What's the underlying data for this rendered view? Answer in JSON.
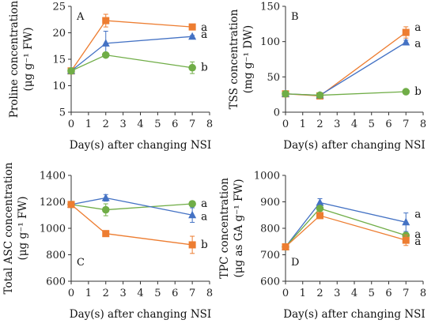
{
  "colors": {
    "orange": "#ED7D31",
    "blue": "#4472C4",
    "green": "#70AD47"
  },
  "chart_data": [
    {
      "type": "line",
      "panel": "A",
      "xlabel": "Day(s) after changing NSI",
      "ylabel": "Proline concentration",
      "ylabel2": "(μg g⁻¹ FW)",
      "xlim": [
        0,
        8
      ],
      "ylim": [
        5,
        25
      ],
      "xticks": [
        0,
        1,
        2,
        3,
        4,
        5,
        6,
        7,
        8
      ],
      "yticks": [
        5,
        10,
        15,
        20,
        25
      ],
      "x": [
        0,
        2,
        7
      ],
      "series": [
        {
          "color": "orange",
          "marker": "square",
          "values": [
            12.8,
            22.3,
            21.1
          ],
          "errors": [
            0,
            1.2,
            0.3
          ],
          "sig": "a"
        },
        {
          "color": "blue",
          "marker": "triangle",
          "values": [
            12.8,
            18.0,
            19.3
          ],
          "errors": [
            0,
            2.3,
            0.2
          ],
          "sig": "a"
        },
        {
          "color": "green",
          "marker": "circle",
          "values": [
            12.8,
            15.8,
            13.4
          ],
          "errors": [
            0,
            0.4,
            1.1
          ],
          "sig": "b"
        }
      ]
    },
    {
      "type": "line",
      "panel": "B",
      "xlabel": "Day(s) after changing NSI",
      "ylabel": "TSS concentration",
      "ylabel2": "(mg g⁻¹ DW)",
      "xlim": [
        0,
        8
      ],
      "ylim": [
        0,
        150
      ],
      "xticks": [
        0,
        1,
        2,
        3,
        4,
        5,
        6,
        7,
        8
      ],
      "yticks": [
        0,
        50,
        100,
        150
      ],
      "x": [
        0,
        2,
        7
      ],
      "series": [
        {
          "color": "orange",
          "marker": "square",
          "values": [
            26,
            23,
            113
          ],
          "errors": [
            0,
            2,
            8
          ],
          "sig": "a"
        },
        {
          "color": "blue",
          "marker": "triangle",
          "values": [
            26,
            24,
            99
          ],
          "errors": [
            0,
            2,
            3
          ],
          "sig": "a"
        },
        {
          "color": "green",
          "marker": "circle",
          "values": [
            26,
            24,
            29
          ],
          "errors": [
            0,
            1,
            1
          ],
          "sig": "b"
        }
      ]
    },
    {
      "type": "line",
      "panel": "C",
      "xlabel": "Day(s) after changing NSI",
      "ylabel": "Total ASC concentration",
      "ylabel2": "(μg g⁻¹ FW)",
      "xlim": [
        0,
        8
      ],
      "ylim": [
        600,
        1400
      ],
      "xticks": [
        0,
        1,
        2,
        3,
        4,
        5,
        6,
        7,
        8
      ],
      "yticks": [
        600,
        800,
        1000,
        1200,
        1400
      ],
      "x": [
        0,
        2,
        7
      ],
      "series": [
        {
          "color": "green",
          "marker": "circle",
          "values": [
            1180,
            1140,
            1185
          ],
          "errors": [
            0,
            45,
            20
          ],
          "sig": "a"
        },
        {
          "color": "blue",
          "marker": "triangle",
          "values": [
            1180,
            1230,
            1100
          ],
          "errors": [
            0,
            25,
            55
          ],
          "sig": "a"
        },
        {
          "color": "orange",
          "marker": "square",
          "values": [
            1180,
            960,
            875
          ],
          "errors": [
            0,
            10,
            65
          ],
          "sig": "b"
        }
      ]
    },
    {
      "type": "line",
      "panel": "D",
      "xlabel": "Day(s) after changing NSI",
      "ylabel": "TPC concentration",
      "ylabel2": "(μg as GA g⁻¹ FW)",
      "xlim": [
        0,
        8
      ],
      "ylim": [
        600,
        1000
      ],
      "xticks": [
        0,
        1,
        2,
        3,
        4,
        5,
        6,
        7,
        8
      ],
      "yticks": [
        600,
        700,
        800,
        900,
        1000
      ],
      "x": [
        0,
        2,
        7
      ],
      "series": [
        {
          "color": "blue",
          "marker": "triangle",
          "values": [
            730,
            897,
            823
          ],
          "errors": [
            0,
            15,
            35
          ],
          "sig": "a"
        },
        {
          "color": "green",
          "marker": "circle",
          "values": [
            730,
            875,
            773
          ],
          "errors": [
            0,
            10,
            10
          ],
          "sig": "a"
        },
        {
          "color": "orange",
          "marker": "square",
          "values": [
            730,
            848,
            755
          ],
          "errors": [
            0,
            8,
            20
          ],
          "sig": "a"
        }
      ]
    }
  ]
}
